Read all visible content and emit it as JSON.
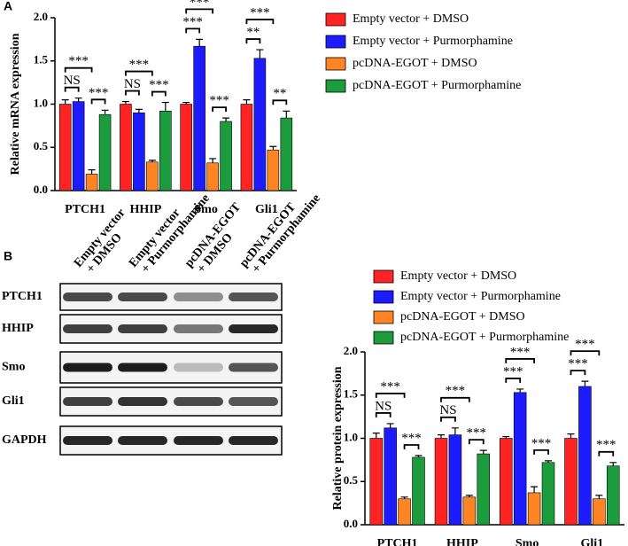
{
  "panels": [
    "A",
    "B"
  ],
  "blot": {
    "lanes": [
      [
        "Empty vector",
        "+ DMSO"
      ],
      [
        "Empty vector",
        "+ Purmorphamine"
      ],
      [
        "pcDNA-EGOT",
        "+ DMSO"
      ],
      [
        "pcDNA-EGOT",
        "+ Purmorphamine"
      ]
    ],
    "rows": [
      "PTCH1",
      "HHIP",
      "Smo",
      "Gli1",
      "GAPDH"
    ]
  },
  "chart_data": [
    {
      "type": "bar",
      "ylabel": "Relative mRNA expression",
      "categories": [
        "PTCH1",
        "HHIP",
        "Smo",
        "Gli1"
      ],
      "series": [
        {
          "name": "Empty vector + DMSO",
          "color": "#ff2424",
          "values": [
            1.0,
            1.0,
            1.0,
            1.0
          ],
          "errors": [
            0.05,
            0.03,
            0.02,
            0.05
          ]
        },
        {
          "name": "Empty vector + Purmorphamine",
          "color": "#1c1cff",
          "values": [
            1.03,
            0.9,
            1.67,
            1.53
          ],
          "errors": [
            0.04,
            0.04,
            0.08,
            0.1
          ]
        },
        {
          "name": "pcDNA-EGOT + DMSO",
          "color": "#ff8424",
          "values": [
            0.19,
            0.33,
            0.32,
            0.47
          ],
          "errors": [
            0.05,
            0.02,
            0.05,
            0.04
          ]
        },
        {
          "name": "pcDNA-EGOT + Purmorphamine",
          "color": "#1c9c3c",
          "values": [
            0.88,
            0.92,
            0.8,
            0.84
          ],
          "errors": [
            0.05,
            0.1,
            0.04,
            0.08
          ]
        }
      ],
      "significance": [
        [
          "NS",
          "***",
          "***"
        ],
        [
          "NS",
          "***",
          "***"
        ],
        [
          "***",
          "***",
          "***"
        ],
        [
          "**",
          "***",
          "**"
        ]
      ],
      "ylim": [
        0,
        2
      ],
      "yticks": [
        {
          "value": 0,
          "label": "0.0"
        },
        0.5,
        {
          "value": 1,
          "label": "1.0"
        },
        1.5,
        {
          "value": 2,
          "label": "2.0"
        }
      ]
    },
    {
      "type": "bar",
      "ylabel": "Relative protein expression",
      "categories": [
        "PTCH1",
        "HHIP",
        "Smo",
        "Gli1"
      ],
      "series": [
        {
          "name": "Empty vector + DMSO",
          "color": "#ff2424",
          "values": [
            1.0,
            1.0,
            1.0,
            1.0
          ],
          "errors": [
            0.06,
            0.04,
            0.02,
            0.05
          ]
        },
        {
          "name": "Empty vector + Purmorphamine",
          "color": "#1c1cff",
          "values": [
            1.12,
            1.04,
            1.53,
            1.6
          ],
          "errors": [
            0.05,
            0.08,
            0.04,
            0.06
          ]
        },
        {
          "name": "pcDNA-EGOT + DMSO",
          "color": "#ff8424",
          "values": [
            0.3,
            0.32,
            0.37,
            0.3
          ],
          "errors": [
            0.02,
            0.02,
            0.07,
            0.04
          ]
        },
        {
          "name": "pcDNA-EGOT + Purmorphamine",
          "color": "#1c9c3c",
          "values": [
            0.78,
            0.82,
            0.72,
            0.68
          ],
          "errors": [
            0.02,
            0.04,
            0.02,
            0.04
          ]
        }
      ],
      "significance": [
        [
          "NS",
          "***",
          "***"
        ],
        [
          "NS",
          "***",
          "***"
        ],
        [
          "***",
          "***",
          "***"
        ],
        [
          "***",
          "***",
          "***"
        ]
      ],
      "ylim": [
        0,
        2
      ],
      "yticks": [
        {
          "value": 0,
          "label": "0.0"
        },
        0.5,
        {
          "value": 1,
          "label": "1.0"
        },
        1.5,
        {
          "value": 2,
          "label": "2.0"
        }
      ]
    }
  ]
}
